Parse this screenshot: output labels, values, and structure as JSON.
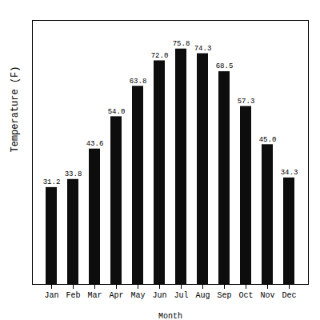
{
  "chart_data": {
    "type": "bar",
    "categories": [
      "Jan",
      "Feb",
      "Mar",
      "Apr",
      "May",
      "Jun",
      "Jul",
      "Aug",
      "Sep",
      "Oct",
      "Nov",
      "Dec"
    ],
    "values": [
      31.2,
      33.8,
      43.6,
      54.0,
      63.8,
      72.0,
      75.8,
      74.3,
      68.5,
      57.3,
      45.0,
      34.3
    ],
    "value_labels": [
      "31.2",
      "33.8",
      "43.6",
      "54.0",
      "63.8",
      "72.0",
      "75.8",
      "74.3",
      "68.5",
      "57.3",
      "45.0",
      "34.3"
    ],
    "color": "#0d0d0d",
    "xlabel": "Month",
    "ylabel": "Temperature (F)",
    "ylim": [
      0,
      85
    ],
    "yticks": [],
    "grid": false,
    "data_labels": true,
    "tick_labels": "x"
  }
}
